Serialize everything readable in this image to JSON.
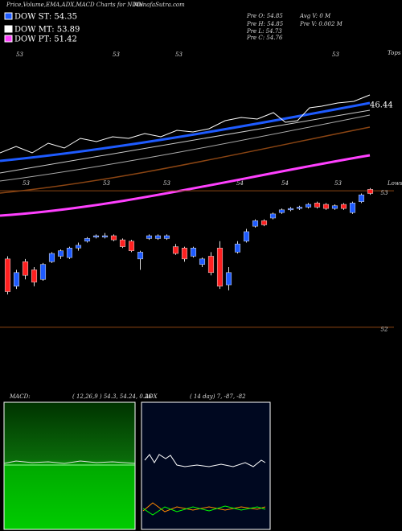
{
  "header": {
    "title": "Price,Volume,EMA,ADX,MACD Charts for NIAN",
    "site": "MunafaSutra.com"
  },
  "legend": [
    {
      "label": "DOW ST: 54.35",
      "color": "#1e5bff"
    },
    {
      "label": "DOW MT: 53.89",
      "color": "#ffffff"
    },
    {
      "label": "DOW PT: 51.42",
      "color": "#ff40ff"
    }
  ],
  "stats": [
    "Pre  O: 54.85",
    "Avg V: 0  M",
    "Pre  H: 54.85",
    "Pre  V: 0.002  M",
    "Pre  L: 54.73",
    "Pre  C: 54.76"
  ],
  "ema_panel": {
    "top_labels": [
      "53",
      "53",
      "53",
      "53"
    ],
    "tops": "Tops",
    "low_labels": [
      "53",
      "53",
      "53",
      "54",
      "54",
      "53"
    ],
    "lows": "Lows",
    "last_value": "46.44"
  },
  "chart_data": {
    "type": "candlestick",
    "categories": [
      null,
      null,
      null,
      null,
      null,
      null,
      null,
      null,
      null,
      null,
      null,
      null,
      null,
      null,
      null,
      null,
      null,
      null,
      null,
      null,
      null,
      null,
      null,
      null,
      null,
      null,
      null,
      null,
      null,
      null,
      null,
      null,
      null,
      null,
      null,
      null,
      null,
      null,
      null,
      null,
      null,
      null
    ],
    "open": [
      52.5,
      52.3,
      52.48,
      52.42,
      52.35,
      52.48,
      52.52,
      52.51,
      52.58,
      52.63,
      52.66,
      52.66,
      52.67,
      52.64,
      52.63,
      52.5,
      52.65,
      52.65,
      52.65,
      52.59,
      52.58,
      52.52,
      52.46,
      52.52,
      52.58,
      52.31,
      52.55,
      52.63,
      52.74,
      52.78,
      52.8,
      52.84,
      52.86,
      52.87,
      52.88,
      52.91,
      52.9,
      52.87,
      52.9,
      52.84,
      52.92,
      53.01
    ],
    "high": [
      52.52,
      52.42,
      52.5,
      52.44,
      52.47,
      52.55,
      52.57,
      52.59,
      52.62,
      52.66,
      52.68,
      52.69,
      52.68,
      52.65,
      52.64,
      52.56,
      52.68,
      52.68,
      52.68,
      52.61,
      52.59,
      52.59,
      52.51,
      52.55,
      52.63,
      52.44,
      52.63,
      52.72,
      52.79,
      52.79,
      52.84,
      52.87,
      52.88,
      52.89,
      52.91,
      52.92,
      52.91,
      52.9,
      52.91,
      52.92,
      52.98,
      53.02
    ],
    "low": [
      52.24,
      52.28,
      52.35,
      52.3,
      52.34,
      52.47,
      52.5,
      52.5,
      52.56,
      52.62,
      52.65,
      52.65,
      52.63,
      52.58,
      52.55,
      52.42,
      52.64,
      52.64,
      52.64,
      52.53,
      52.48,
      52.51,
      52.44,
      52.38,
      52.28,
      52.27,
      52.54,
      52.62,
      52.73,
      52.74,
      52.79,
      52.83,
      52.85,
      52.86,
      52.87,
      52.87,
      52.86,
      52.86,
      52.86,
      52.83,
      52.91,
      52.97
    ],
    "close": [
      52.26,
      52.4,
      52.38,
      52.33,
      52.46,
      52.54,
      52.56,
      52.58,
      52.6,
      52.65,
      52.67,
      52.67,
      52.64,
      52.59,
      52.56,
      52.55,
      52.67,
      52.67,
      52.67,
      52.54,
      52.5,
      52.58,
      52.5,
      52.4,
      52.3,
      52.4,
      52.61,
      52.7,
      52.78,
      52.75,
      52.83,
      52.86,
      52.87,
      52.88,
      52.9,
      52.88,
      52.87,
      52.89,
      52.87,
      52.91,
      52.97,
      52.98
    ],
    "up_color": "#1e5bff",
    "down_color": "#ff2020",
    "ylim": [
      51.98,
      53.03
    ],
    "yticks": [
      52,
      53
    ],
    "grid": true
  },
  "macd": {
    "label": "MACD:",
    "params": "( 12,26,9 ) 54.3, 54.24, 0.26"
  },
  "adx": {
    "label": "ADX",
    "params": "( 14  day) 7, -87, -82"
  }
}
